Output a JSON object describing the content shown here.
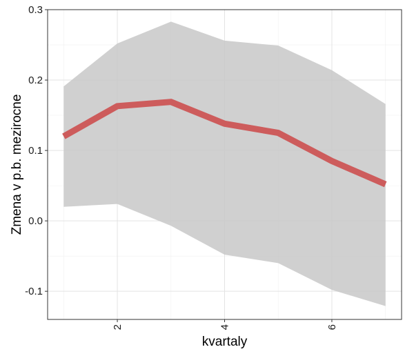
{
  "chart_data": {
    "type": "line",
    "title": "",
    "xlabel": "kvartaly",
    "ylabel": "Zmena v p.b. mezirocne",
    "x": [
      1,
      2,
      3,
      4,
      5,
      6,
      7
    ],
    "series": [
      {
        "values": [
          0.12,
          0.163,
          0.169,
          0.138,
          0.125,
          0.085,
          0.052
        ],
        "lower": [
          0.02,
          0.024,
          -0.007,
          -0.048,
          -0.06,
          -0.098,
          -0.121
        ],
        "upper": [
          0.191,
          0.252,
          0.283,
          0.256,
          0.249,
          0.214,
          0.166
        ],
        "color": "#cd5c5c"
      }
    ],
    "band_color": "#c8c8c8",
    "xlim": [
      0.7,
      7.3
    ],
    "ylim": [
      -0.14,
      0.3
    ],
    "xticks": [
      2,
      4,
      6
    ],
    "xtick_labels": [
      "2",
      "4",
      "6"
    ],
    "yticks": [
      -0.1,
      0.0,
      0.1,
      0.2,
      0.3
    ],
    "ytick_labels": [
      "-0.1",
      "0.0",
      "0.1",
      "0.2",
      "0.3"
    ],
    "grid": true
  }
}
